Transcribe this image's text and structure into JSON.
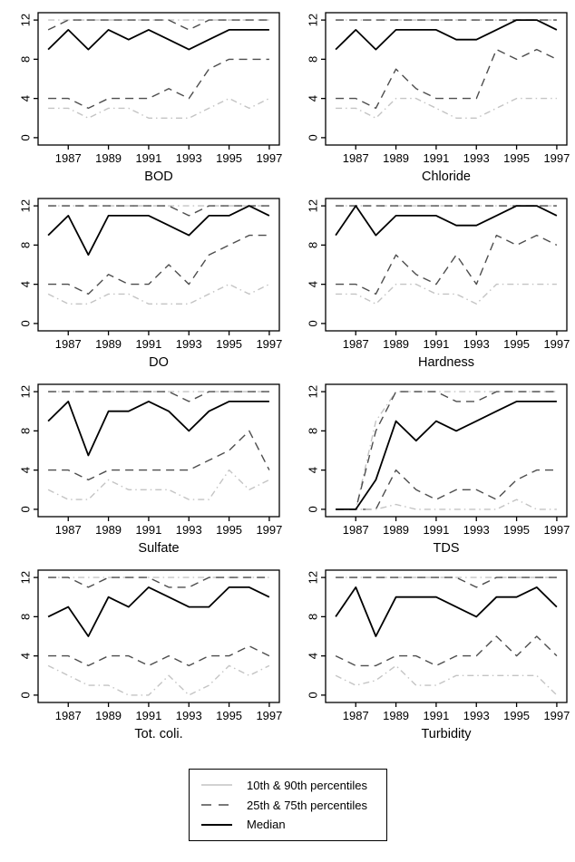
{
  "figure": {
    "x_ticks": [
      "1987",
      "1989",
      "1991",
      "1993",
      "1995",
      "1997"
    ],
    "y_ticks": [
      "0",
      "4",
      "8",
      "12"
    ],
    "styles": {
      "light-dashdot": {
        "color": "#c4c4c4",
        "dash": "7,4,1.5,4",
        "width": 1.4
      },
      "dark-dashed": {
        "color": "#4d4d4d",
        "dash": "9,6",
        "width": 1.4
      },
      "black-solid": {
        "color": "#000000",
        "dash": "",
        "width": 1.8
      }
    }
  },
  "chart_data": [
    {
      "type": "line",
      "title": "BOD",
      "ylim": [
        0,
        12
      ],
      "x": [
        1986,
        1987,
        1988,
        1989,
        1990,
        1991,
        1992,
        1993,
        1994,
        1995,
        1996,
        1997
      ],
      "series": [
        {
          "name": "90th percentile",
          "style": "light-dashdot",
          "values": [
            12,
            12,
            12,
            12,
            12,
            12,
            12,
            12,
            12,
            12,
            12,
            12
          ]
        },
        {
          "name": "75th percentile",
          "style": "dark-dashed",
          "values": [
            11,
            12,
            12,
            12,
            12,
            12,
            12,
            11,
            12,
            12,
            12,
            12
          ]
        },
        {
          "name": "25th percentile",
          "style": "dark-dashed",
          "values": [
            4,
            4,
            3,
            4,
            4,
            4,
            5,
            4,
            7,
            8,
            8,
            8
          ]
        },
        {
          "name": "10th percentile",
          "style": "light-dashdot",
          "values": [
            3,
            3,
            2,
            3,
            3,
            2,
            2,
            2,
            3,
            4,
            3,
            4
          ]
        },
        {
          "name": "Median",
          "style": "black-solid",
          "values": [
            9,
            11,
            9,
            11,
            10,
            11,
            10,
            9,
            10,
            11,
            11,
            11
          ]
        }
      ]
    },
    {
      "type": "line",
      "title": "Chloride",
      "ylim": [
        0,
        12
      ],
      "x": [
        1986,
        1987,
        1988,
        1989,
        1990,
        1991,
        1992,
        1993,
        1994,
        1995,
        1996,
        1997
      ],
      "series": [
        {
          "name": "90th percentile",
          "style": "light-dashdot",
          "values": [
            12,
            12,
            12,
            12,
            12,
            12,
            12,
            12,
            12,
            12,
            12,
            12
          ]
        },
        {
          "name": "75th percentile",
          "style": "dark-dashed",
          "values": [
            12,
            12,
            12,
            12,
            12,
            12,
            12,
            12,
            12,
            12,
            12,
            12
          ]
        },
        {
          "name": "25th percentile",
          "style": "dark-dashed",
          "values": [
            4,
            4,
            3,
            7,
            5,
            4,
            4,
            4,
            9,
            8,
            9,
            8
          ]
        },
        {
          "name": "10th percentile",
          "style": "light-dashdot",
          "values": [
            3,
            3,
            2,
            4,
            4,
            3,
            2,
            2,
            3,
            4,
            4,
            4
          ]
        },
        {
          "name": "Median",
          "style": "black-solid",
          "values": [
            9,
            11,
            9,
            11,
            11,
            11,
            10,
            10,
            11,
            12,
            12,
            11
          ]
        }
      ]
    },
    {
      "type": "line",
      "title": "DO",
      "ylim": [
        0,
        12
      ],
      "x": [
        1986,
        1987,
        1988,
        1989,
        1990,
        1991,
        1992,
        1993,
        1994,
        1995,
        1996,
        1997
      ],
      "series": [
        {
          "name": "90th percentile",
          "style": "light-dashdot",
          "values": [
            12,
            12,
            12,
            12,
            12,
            12,
            12,
            12,
            12,
            12,
            12,
            12
          ]
        },
        {
          "name": "75th percentile",
          "style": "dark-dashed",
          "values": [
            12,
            12,
            12,
            12,
            12,
            12,
            12,
            11,
            12,
            12,
            12,
            12
          ]
        },
        {
          "name": "25th percentile",
          "style": "dark-dashed",
          "values": [
            4,
            4,
            3,
            5,
            4,
            4,
            6,
            4,
            7,
            8,
            9,
            9
          ]
        },
        {
          "name": "10th percentile",
          "style": "light-dashdot",
          "values": [
            3,
            2,
            2,
            3,
            3,
            2,
            2,
            2,
            3,
            4,
            3,
            4
          ]
        },
        {
          "name": "Median",
          "style": "black-solid",
          "values": [
            9,
            11,
            7,
            11,
            11,
            11,
            10,
            9,
            11,
            11,
            12,
            11
          ]
        }
      ]
    },
    {
      "type": "line",
      "title": "Hardness",
      "ylim": [
        0,
        12
      ],
      "x": [
        1986,
        1987,
        1988,
        1989,
        1990,
        1991,
        1992,
        1993,
        1994,
        1995,
        1996,
        1997
      ],
      "series": [
        {
          "name": "90th percentile",
          "style": "light-dashdot",
          "values": [
            12,
            12,
            12,
            12,
            12,
            12,
            12,
            12,
            12,
            12,
            12,
            12
          ]
        },
        {
          "name": "75th percentile",
          "style": "dark-dashed",
          "values": [
            12,
            12,
            12,
            12,
            12,
            12,
            12,
            12,
            12,
            12,
            12,
            12
          ]
        },
        {
          "name": "25th percentile",
          "style": "dark-dashed",
          "values": [
            4,
            4,
            3,
            7,
            5,
            4,
            7,
            4,
            9,
            8,
            9,
            8
          ]
        },
        {
          "name": "10th percentile",
          "style": "light-dashdot",
          "values": [
            3,
            3,
            2,
            4,
            4,
            3,
            3,
            2,
            4,
            4,
            4,
            4
          ]
        },
        {
          "name": "Median",
          "style": "black-solid",
          "values": [
            9,
            12,
            9,
            11,
            11,
            11,
            10,
            10,
            11,
            12,
            12,
            11
          ]
        }
      ]
    },
    {
      "type": "line",
      "title": "Sulfate",
      "ylim": [
        0,
        12
      ],
      "x": [
        1986,
        1987,
        1988,
        1989,
        1990,
        1991,
        1992,
        1993,
        1994,
        1995,
        1996,
        1997
      ],
      "series": [
        {
          "name": "90th percentile",
          "style": "light-dashdot",
          "values": [
            12,
            12,
            12,
            12,
            12,
            12,
            12,
            12,
            12,
            12,
            12,
            12
          ]
        },
        {
          "name": "75th percentile",
          "style": "dark-dashed",
          "values": [
            12,
            12,
            12,
            12,
            12,
            12,
            12,
            11,
            12,
            12,
            12,
            12
          ]
        },
        {
          "name": "25th percentile",
          "style": "dark-dashed",
          "values": [
            4,
            4,
            3,
            4,
            4,
            4,
            4,
            4,
            5,
            6,
            8,
            4
          ]
        },
        {
          "name": "10th percentile",
          "style": "light-dashdot",
          "values": [
            2,
            1,
            1,
            3,
            2,
            2,
            2,
            1,
            1,
            4,
            2,
            3
          ]
        },
        {
          "name": "Median",
          "style": "black-solid",
          "values": [
            9,
            11,
            5.5,
            10,
            10,
            11,
            10,
            8,
            10,
            11,
            11,
            11
          ]
        }
      ]
    },
    {
      "type": "line",
      "title": "TDS",
      "ylim": [
        0,
        12
      ],
      "x": [
        1986,
        1987,
        1988,
        1989,
        1990,
        1991,
        1992,
        1993,
        1994,
        1995,
        1996,
        1997
      ],
      "series": [
        {
          "name": "90th percentile",
          "style": "light-dashdot",
          "values": [
            0,
            0,
            9,
            12,
            12,
            12,
            12,
            12,
            12,
            12,
            12,
            12
          ]
        },
        {
          "name": "75th percentile",
          "style": "dark-dashed",
          "values": [
            0,
            0,
            8,
            12,
            12,
            12,
            11,
            11,
            12,
            12,
            12,
            12
          ]
        },
        {
          "name": "25th percentile",
          "style": "dark-dashed",
          "values": [
            0,
            0,
            0,
            4,
            2,
            1,
            2,
            2,
            1,
            3,
            4,
            4
          ]
        },
        {
          "name": "10th percentile",
          "style": "light-dashdot",
          "values": [
            0,
            0,
            0,
            0.5,
            0,
            0,
            0,
            0,
            0,
            1,
            0,
            0
          ]
        },
        {
          "name": "Median",
          "style": "black-solid",
          "values": [
            0,
            0,
            3,
            9,
            7,
            9,
            8,
            9,
            10,
            11,
            11,
            11
          ]
        }
      ]
    },
    {
      "type": "line",
      "title": "Tot. coli.",
      "ylim": [
        0,
        12
      ],
      "x": [
        1986,
        1987,
        1988,
        1989,
        1990,
        1991,
        1992,
        1993,
        1994,
        1995,
        1996,
        1997
      ],
      "series": [
        {
          "name": "90th percentile",
          "style": "light-dashdot",
          "values": [
            12,
            12,
            12,
            12,
            12,
            12,
            12,
            12,
            12,
            12,
            12,
            12
          ]
        },
        {
          "name": "75th percentile",
          "style": "dark-dashed",
          "values": [
            12,
            12,
            11,
            12,
            12,
            12,
            11,
            11,
            12,
            12,
            12,
            12
          ]
        },
        {
          "name": "25th percentile",
          "style": "dark-dashed",
          "values": [
            4,
            4,
            3,
            4,
            4,
            3,
            4,
            3,
            4,
            4,
            5,
            4
          ]
        },
        {
          "name": "10th percentile",
          "style": "light-dashdot",
          "values": [
            3,
            2,
            1,
            1,
            0,
            0,
            2,
            0,
            1,
            3,
            2,
            3
          ]
        },
        {
          "name": "Median",
          "style": "black-solid",
          "values": [
            8,
            9,
            6,
            10,
            9,
            11,
            10,
            9,
            9,
            11,
            11,
            10
          ]
        }
      ]
    },
    {
      "type": "line",
      "title": "Turbidity",
      "ylim": [
        0,
        12
      ],
      "x": [
        1986,
        1987,
        1988,
        1989,
        1990,
        1991,
        1992,
        1993,
        1994,
        1995,
        1996,
        1997
      ],
      "series": [
        {
          "name": "90th percentile",
          "style": "light-dashdot",
          "values": [
            12,
            12,
            12,
            12,
            12,
            12,
            12,
            12,
            12,
            12,
            12,
            12
          ]
        },
        {
          "name": "75th percentile",
          "style": "dark-dashed",
          "values": [
            12,
            12,
            12,
            12,
            12,
            12,
            12,
            11,
            12,
            12,
            12,
            12
          ]
        },
        {
          "name": "25th percentile",
          "style": "dark-dashed",
          "values": [
            4,
            3,
            3,
            4,
            4,
            3,
            4,
            4,
            6,
            4,
            6,
            4
          ]
        },
        {
          "name": "10th percentile",
          "style": "light-dashdot",
          "values": [
            2,
            1,
            1.5,
            3,
            1,
            1,
            2,
            2,
            2,
            2,
            2,
            0
          ]
        },
        {
          "name": "Median",
          "style": "black-solid",
          "values": [
            8,
            11,
            6,
            10,
            10,
            10,
            9,
            8,
            10,
            10,
            11,
            9
          ]
        }
      ]
    }
  ],
  "legend": {
    "items": [
      {
        "label": "10th & 90th percentiles",
        "color": "#c4c4c4",
        "dash": "",
        "width": 1.6
      },
      {
        "label": "25th & 75th percentiles",
        "color": "#4d4d4d",
        "dash": "11,8",
        "width": 1.6
      },
      {
        "label": "Median",
        "color": "#000000",
        "dash": "",
        "width": 1.9
      }
    ]
  }
}
